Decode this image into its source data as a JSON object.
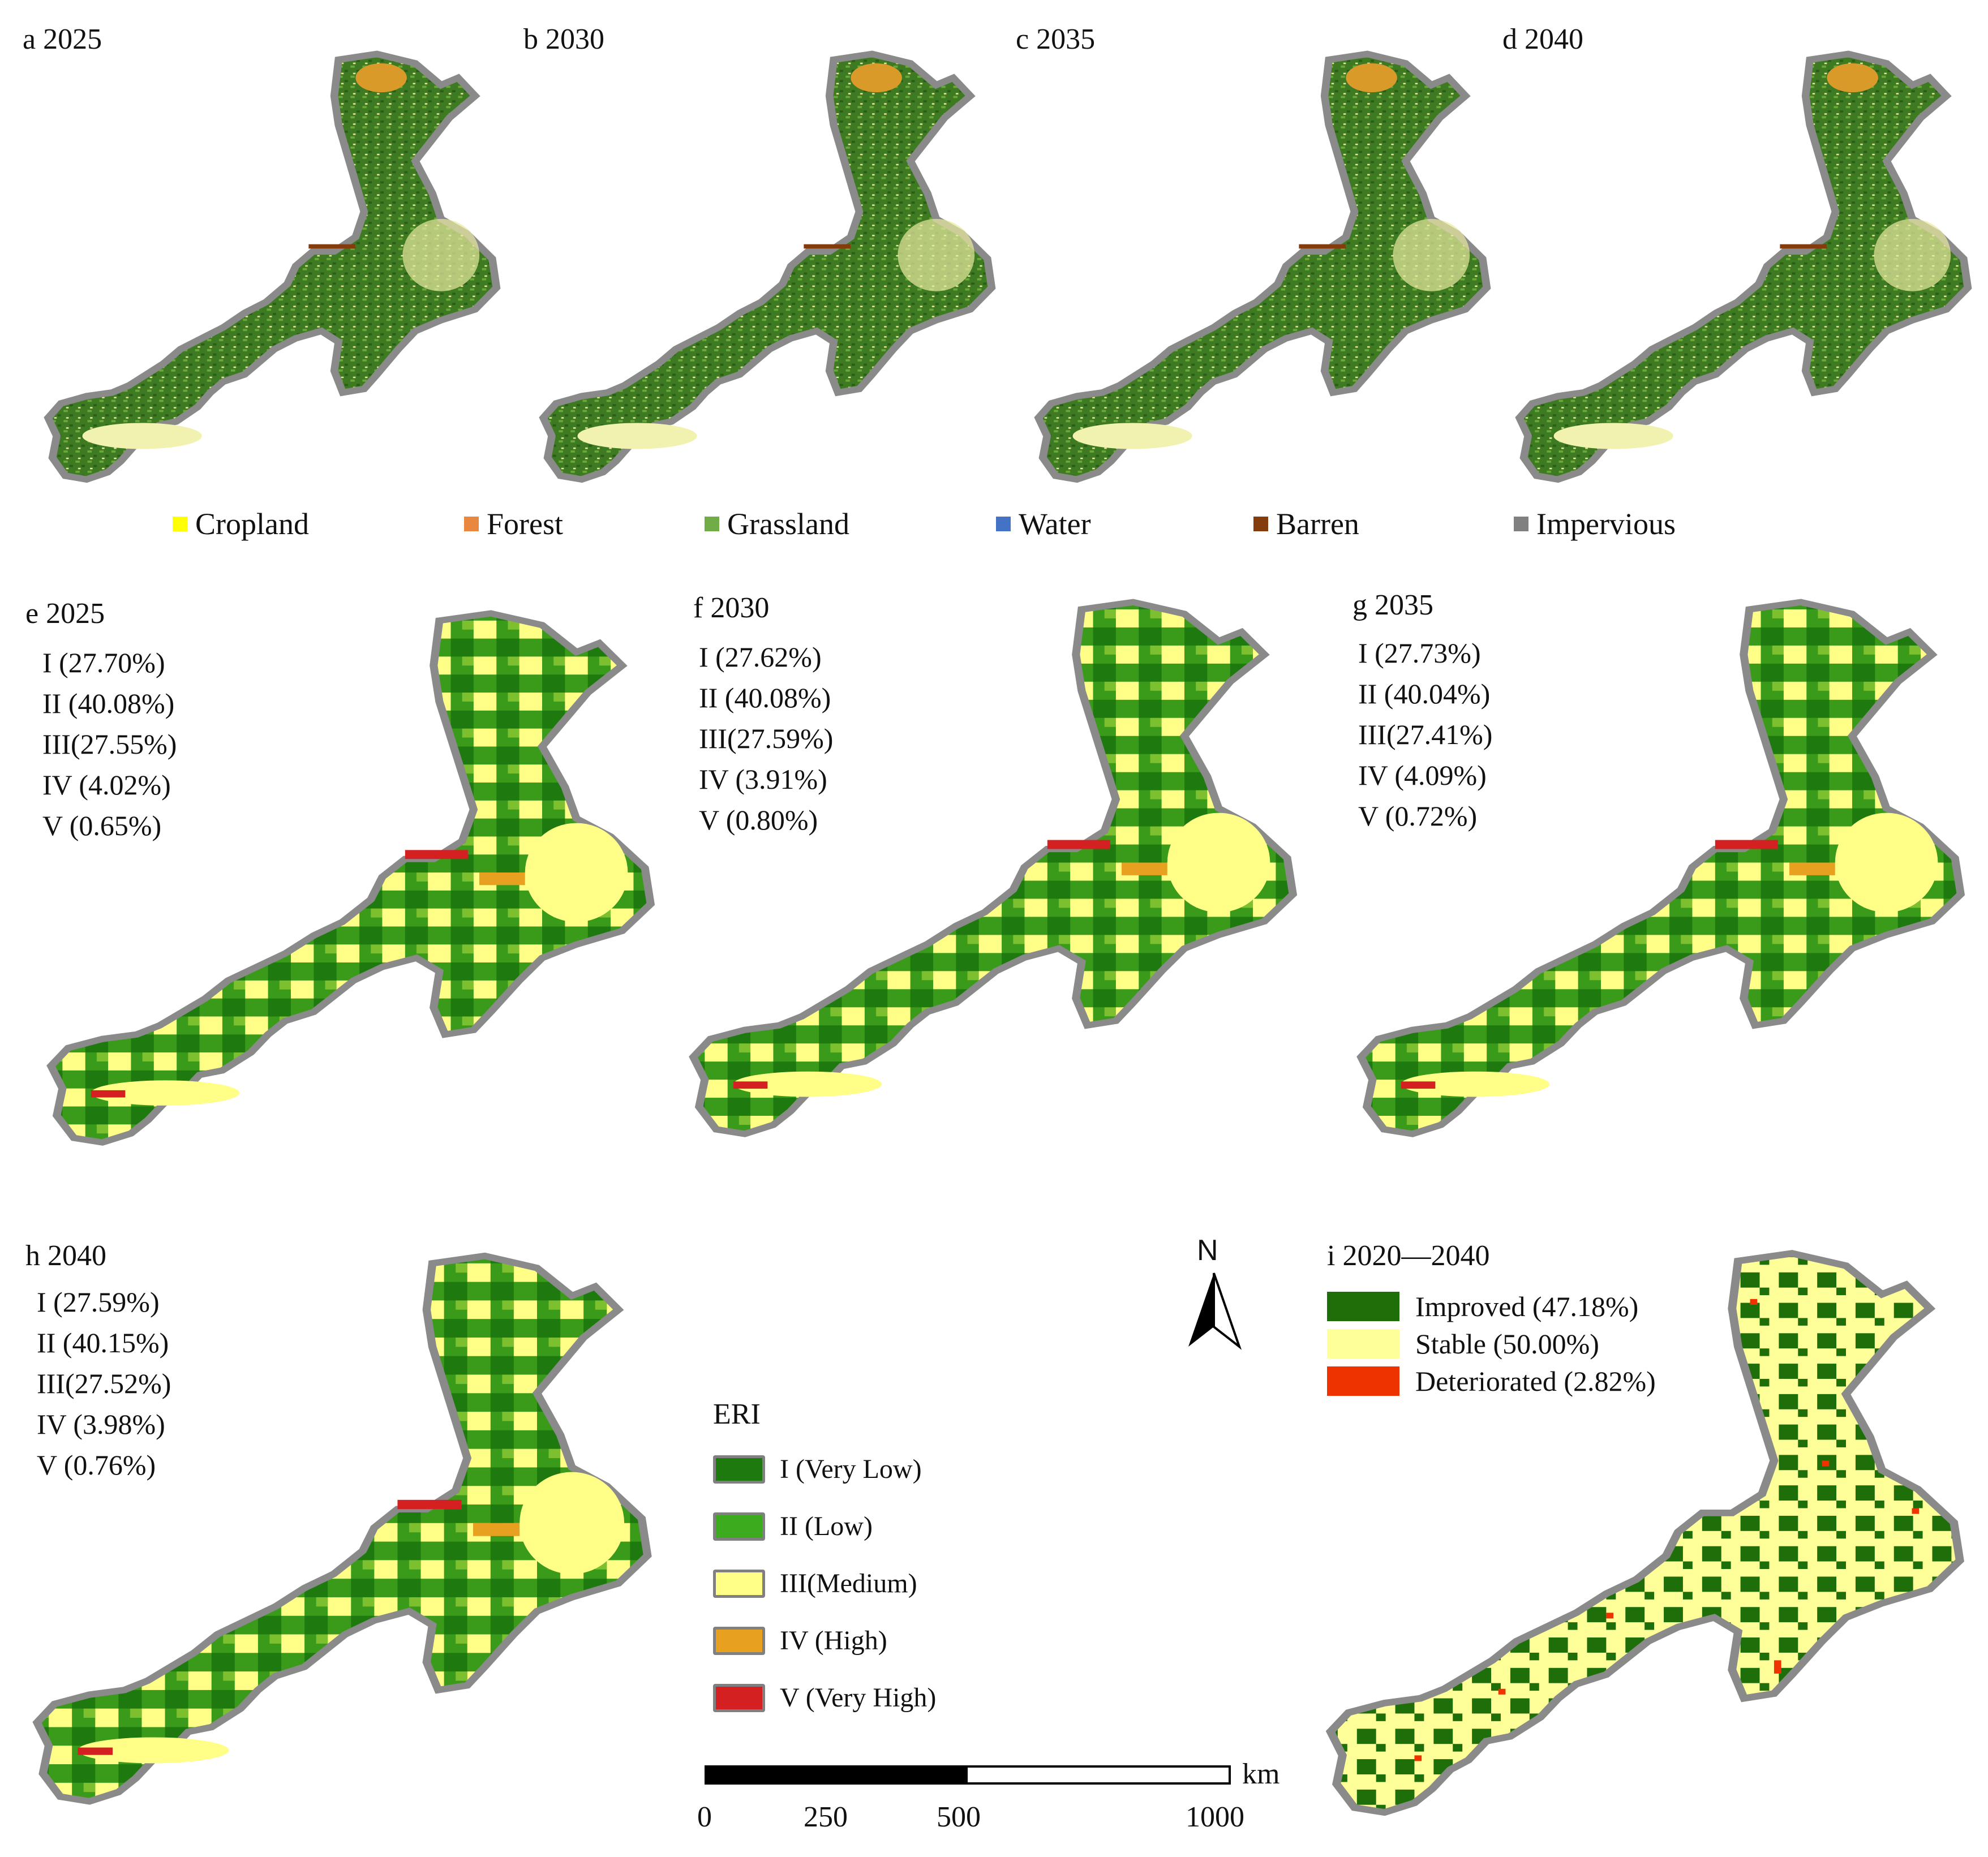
{
  "landuse_panels": [
    {
      "label": "a 2025"
    },
    {
      "label": "b 2030"
    },
    {
      "label": "c 2035"
    },
    {
      "label": "d 2040"
    }
  ],
  "landuse_legend": [
    {
      "label": "Cropland",
      "color": "#ffff00"
    },
    {
      "label": "Forest",
      "color": "#e9873e"
    },
    {
      "label": "Grassland",
      "color": "#70ad47"
    },
    {
      "label": "Water",
      "color": "#4472c4"
    },
    {
      "label": "Barren",
      "color": "#843c0c"
    },
    {
      "label": "Impervious",
      "color": "#808080"
    }
  ],
  "eri_panels": [
    {
      "label": "e 2025",
      "stats": [
        "I (27.70%)",
        "II (40.08%)",
        "III(27.55%)",
        "IV (4.02%)",
        "V (0.65%)"
      ]
    },
    {
      "label": "f  2030",
      "stats": [
        "I (27.62%)",
        "II (40.08%)",
        "III(27.59%)",
        "IV (3.91%)",
        "V (0.80%)"
      ]
    },
    {
      "label": "g 2035",
      "stats": [
        "I (27.73%)",
        "II (40.04%)",
        "III(27.41%)",
        "IV (4.09%)",
        "V (0.72%)"
      ]
    },
    {
      "label": "h 2040",
      "stats": [
        "I (27.59%)",
        "II (40.15%)",
        "III(27.52%)",
        "IV (3.98%)",
        "V (0.76%)"
      ]
    }
  ],
  "eri_legend": {
    "title": "ERI",
    "items": [
      {
        "label": "I (Very Low)",
        "color": "#1e7a0e"
      },
      {
        "label": "II (Low)",
        "color": "#3cac1e"
      },
      {
        "label": "III(Medium)",
        "color": "#ffff88"
      },
      {
        "label": "IV (High)",
        "color": "#e8a020"
      },
      {
        "label": "V (Very High)",
        "color": "#d42020"
      }
    ]
  },
  "change_panel": {
    "label": "i 2020—2040",
    "items": [
      {
        "label": "Improved (47.18%)",
        "color": "#1e6e0a"
      },
      {
        "label": "Stable (50.00%)",
        "color": "#ffff99"
      },
      {
        "label": "Deteriorated (2.82%)",
        "color": "#ee3300"
      }
    ]
  },
  "north_arrow": {
    "label": "N"
  },
  "scale_bar": {
    "unit": "km",
    "ticks": [
      "0",
      "250",
      "500",
      "1000"
    ]
  }
}
